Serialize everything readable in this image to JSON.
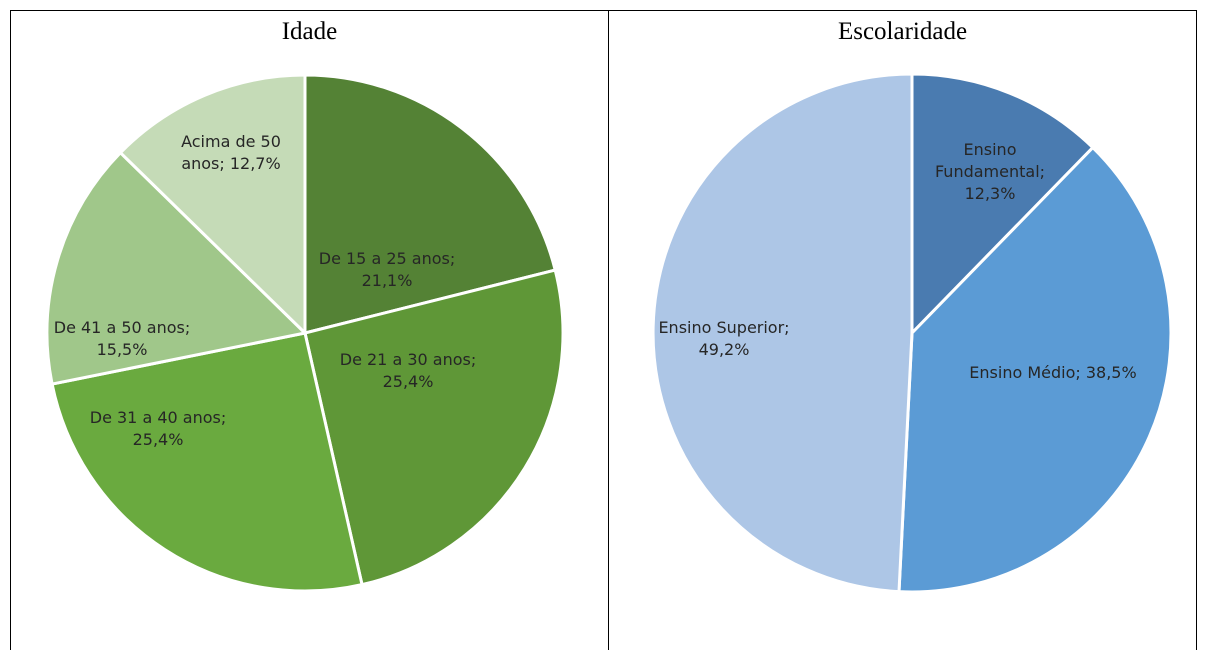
{
  "chart_data": [
    {
      "type": "pie",
      "title": "Idade",
      "slices": [
        {
          "label_lines": [
            "De 15  a 25  anos;",
            "21,1%"
          ],
          "value": 21.1,
          "color": "#548235"
        },
        {
          "label_lines": [
            "De 21 a 30  anos;",
            "25,4%"
          ],
          "value": 25.4,
          "color": "#5f9737"
        },
        {
          "label_lines": [
            "De 31 a 40  anos;",
            "25,4%"
          ],
          "value": 25.4,
          "color": "#6aaa3f"
        },
        {
          "label_lines": [
            "De 41  a 50  anos;",
            "15,5%"
          ],
          "value": 15.5,
          "color": "#a0c78a"
        },
        {
          "label_lines": [
            "Acima de 50",
            "anos; 12,7%"
          ],
          "value": 12.7,
          "color": "#c5dbb7"
        }
      ]
    },
    {
      "type": "pie",
      "title": "Escolaridade",
      "slices": [
        {
          "label_lines": [
            "Ensino",
            "Fundamental;",
            "12,3%"
          ],
          "value": 12.3,
          "color": "#4a7bb0"
        },
        {
          "label_lines": [
            "Ensino Médio; 38,5%"
          ],
          "value": 38.5,
          "color": "#5b9bd5"
        },
        {
          "label_lines": [
            "Ensino Superior;",
            "49,2%"
          ],
          "value": 49.2,
          "color": "#adc6e6"
        }
      ]
    }
  ]
}
